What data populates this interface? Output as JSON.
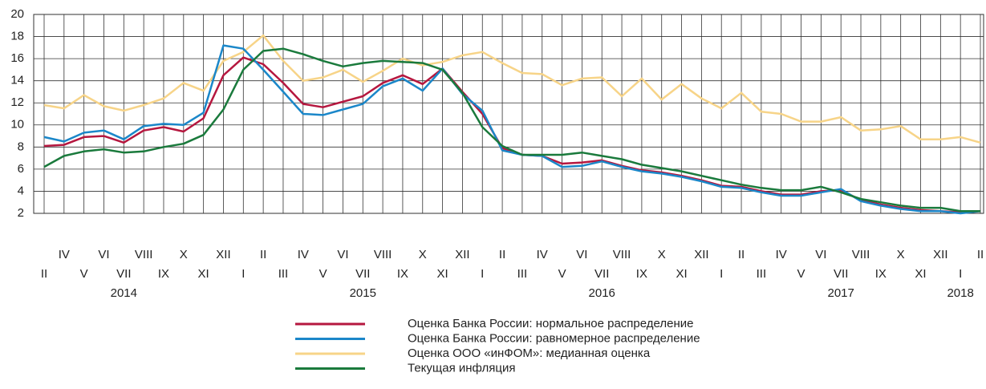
{
  "chart_data": {
    "type": "line",
    "categories": [
      "II",
      "IV",
      "V",
      "VI",
      "VII",
      "VIII",
      "IX",
      "X",
      "XI",
      "XII",
      "I",
      "II",
      "III",
      "IV",
      "V",
      "VI",
      "VII",
      "VIII",
      "IX",
      "X",
      "XI",
      "XII",
      "I",
      "II",
      "III",
      "IV",
      "V",
      "VI",
      "VII",
      "VIII",
      "IX",
      "X",
      "XI",
      "XII",
      "I",
      "II",
      "III",
      "IV",
      "V",
      "VI",
      "VII",
      "VIII",
      "IX",
      "X",
      "XI",
      "XII",
      "I",
      "II"
    ],
    "years": [
      "2014",
      "2015",
      "2016",
      "2017",
      "2018"
    ],
    "ylim": [
      2,
      20
    ],
    "yticks": [
      2,
      4,
      6,
      8,
      10,
      12,
      14,
      16,
      18,
      20
    ],
    "grid": true,
    "series": [
      {
        "name": "Оценка Банка России: нормальное распределение",
        "color": "#b5173f",
        "values": [
          8.1,
          8.2,
          8.9,
          9.0,
          8.4,
          9.5,
          9.8,
          9.4,
          10.6,
          14.5,
          16.1,
          15.5,
          13.8,
          11.9,
          11.6,
          12.1,
          12.6,
          13.8,
          14.5,
          13.7,
          15.1,
          13.0,
          11.0,
          7.9,
          7.3,
          7.2,
          6.5,
          6.6,
          6.8,
          6.3,
          5.9,
          5.7,
          5.4,
          5.0,
          4.5,
          4.4,
          4.0,
          3.7,
          3.7,
          4.0,
          4.1,
          3.2,
          2.8,
          2.5,
          2.3,
          2.2,
          2.1,
          2.2
        ]
      },
      {
        "name": "Оценка Банка России: равномерное распределение",
        "color": "#1b87c9",
        "values": [
          8.9,
          8.5,
          9.3,
          9.5,
          8.7,
          9.9,
          10.1,
          10.0,
          11.1,
          17.2,
          16.9,
          15.0,
          13.0,
          11.0,
          10.9,
          11.4,
          11.9,
          13.5,
          14.2,
          13.1,
          15.1,
          12.8,
          11.3,
          7.7,
          7.3,
          7.2,
          6.2,
          6.3,
          6.7,
          6.2,
          5.8,
          5.6,
          5.3,
          4.9,
          4.4,
          4.3,
          3.9,
          3.6,
          3.6,
          3.9,
          4.2,
          3.1,
          2.7,
          2.4,
          2.2,
          2.2,
          2.0,
          2.2
        ]
      },
      {
        "name": "Оценка ООО «инФОМ»: медианная оценка",
        "color": "#f7d488",
        "values": [
          11.8,
          11.5,
          12.7,
          11.7,
          11.3,
          11.8,
          12.4,
          13.8,
          13.1,
          15.8,
          16.6,
          18.1,
          15.8,
          14.0,
          14.3,
          15.0,
          13.9,
          14.9,
          16.0,
          15.4,
          15.7,
          16.3,
          16.6,
          15.6,
          14.7,
          14.6,
          13.6,
          14.2,
          14.3,
          12.6,
          14.2,
          12.3,
          13.7,
          12.4,
          11.5,
          12.9,
          11.2,
          11.0,
          10.3,
          10.3,
          10.7,
          9.5,
          9.6,
          9.9,
          8.7,
          8.7,
          8.9,
          8.4
        ]
      },
      {
        "name": "Текущая инфляция",
        "color": "#1a7a3c",
        "values": [
          6.2,
          7.2,
          7.6,
          7.8,
          7.5,
          7.6,
          8.0,
          8.3,
          9.1,
          11.4,
          15.0,
          16.7,
          16.9,
          16.4,
          15.8,
          15.3,
          15.6,
          15.8,
          15.7,
          15.6,
          15.0,
          12.9,
          9.8,
          8.1,
          7.3,
          7.3,
          7.3,
          7.5,
          7.2,
          6.9,
          6.4,
          6.1,
          5.8,
          5.4,
          5.0,
          4.6,
          4.3,
          4.1,
          4.1,
          4.4,
          3.9,
          3.3,
          3.0,
          2.7,
          2.5,
          2.5,
          2.2,
          2.2
        ]
      }
    ]
  }
}
